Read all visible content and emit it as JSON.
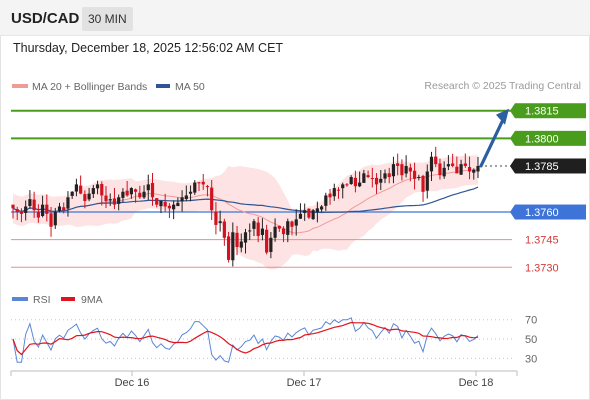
{
  "header": {
    "symbol": "USD/CAD",
    "timeframe": "30 MIN"
  },
  "timestamp": "Thursday, December 18, 2025 12:56:02 AM CET",
  "source": "Research © 2025 Trading Central",
  "colors": {
    "candle_up": "#222222",
    "candle_down": "#d2121f",
    "ma20": "#f19a9a",
    "bollinger_fill": "#fde1e1",
    "ma50": "#2e5595",
    "resistance": "#4a9d1c",
    "support_blue": "#3e74d8",
    "support_red": "#f08a8a",
    "arrow": "#2a5fa0",
    "rsi": "#5b86d6",
    "rsi_ma": "#e0141c"
  },
  "chart_data": [
    {
      "type": "candlestick",
      "legend": [
        {
          "name": "MA 20 + Bollinger Bands",
          "color": "#f19a9a"
        },
        {
          "name": "MA 50",
          "color": "#2e5595"
        }
      ],
      "legend_position": "top-left",
      "x_ticks": [
        "Dec 16",
        "Dec 17",
        "Dec 18"
      ],
      "ylim": [
        1.3722,
        1.3823
      ],
      "levels": [
        {
          "value": 1.3815,
          "label": "1.3815",
          "kind": "resistance"
        },
        {
          "value": 1.38,
          "label": "1.3800",
          "kind": "resistance"
        },
        {
          "value": 1.3785,
          "label": "1.3785",
          "kind": "current"
        },
        {
          "value": 1.376,
          "label": "1.3760",
          "kind": "support_blue"
        },
        {
          "value": 1.3745,
          "label": "1.3745",
          "kind": "support_red"
        },
        {
          "value": 1.373,
          "label": "1.3730",
          "kind": "support_red"
        }
      ],
      "close_series": [
        1.3762,
        1.376,
        1.3759,
        1.3763,
        1.3767,
        1.3761,
        1.3757,
        1.3764,
        1.3759,
        1.3752,
        1.376,
        1.3763,
        1.3761,
        1.3768,
        1.3771,
        1.3775,
        1.377,
        1.3766,
        1.377,
        1.3773,
        1.3775,
        1.3769,
        1.3766,
        1.3767,
        1.3764,
        1.3768,
        1.3771,
        1.3769,
        1.3773,
        1.3771,
        1.3768,
        1.3771,
        1.3775,
        1.3768,
        1.3764,
        1.3766,
        1.3763,
        1.3762,
        1.3764,
        1.3765,
        1.3768,
        1.3769,
        1.3771,
        1.3776,
        1.3776,
        1.3775,
        1.3774,
        1.3761,
        1.3753,
        1.3755,
        1.3746,
        1.3734,
        1.3749,
        1.3741,
        1.3744,
        1.3749,
        1.375,
        1.3755,
        1.3747,
        1.3751,
        1.3738,
        1.3746,
        1.3752,
        1.3751,
        1.3748,
        1.3755,
        1.3752,
        1.3756,
        1.3759,
        1.3761,
        1.3757,
        1.3761,
        1.3762,
        1.3763,
        1.3769,
        1.3768,
        1.3773,
        1.3772,
        1.3775,
        1.3775,
        1.3779,
        1.3774,
        1.3776,
        1.3781,
        1.3779,
        1.3778,
        1.3775,
        1.3778,
        1.3781,
        1.3779,
        1.3786,
        1.3785,
        1.378,
        1.3785,
        1.3782,
        1.3778,
        1.3779,
        1.3771,
        1.3782,
        1.379,
        1.3786,
        1.378,
        1.3784,
        1.3786,
        1.3785,
        1.3781,
        1.3786,
        1.3785,
        1.3782,
        1.3783,
        1.3785
      ],
      "forecast": {
        "target": 1.3815
      }
    },
    {
      "type": "line",
      "legend": [
        {
          "name": "RSI",
          "color": "#5b86d6"
        },
        {
          "name": "9MA",
          "color": "#e0141c"
        }
      ],
      "ylim": [
        20,
        78
      ],
      "y_ticks": [
        70,
        50,
        30
      ],
      "gridlines": [
        70,
        50,
        30
      ]
    }
  ]
}
